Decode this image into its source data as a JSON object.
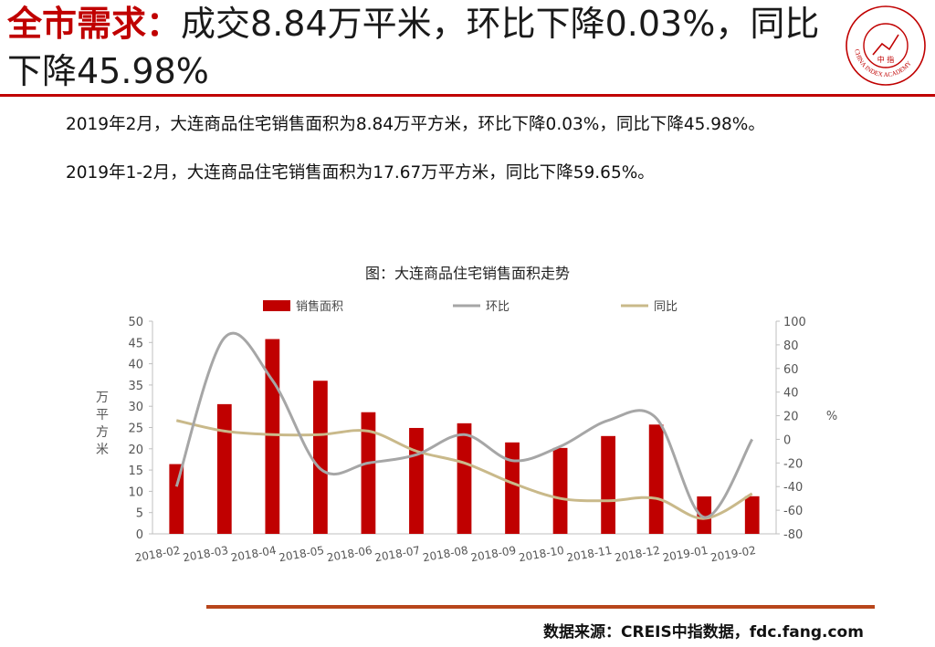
{
  "header": {
    "title_prefix": "全市需求：",
    "title_text": "成交8.84万平米，环比下降0.03%，同比下降45.98%",
    "logo_center": "中 指",
    "logo_ring_text": "CHINA INDEX ACADEMY"
  },
  "paragraphs": [
    "2019年2月，大连商品住宅销售面积为8.84万平方米，环比下降0.03%，同比下降45.98%。",
    "2019年1-2月，大连商品住宅销售面积为17.67万平方米，同比下降59.65%。"
  ],
  "footer": {
    "source": "数据来源：CREIS中指数据，fdc.fang.com"
  },
  "colors": {
    "brand_red": "#c00000",
    "bar": "#c00000",
    "mom_line": "#a6a6a6",
    "yoy_line": "#c9b98a",
    "footer_rule": "#b8461b"
  },
  "chart_data": {
    "type": "bar",
    "title": "图：大连商品住宅销售面积走势",
    "categories": [
      "2018-02",
      "2018-03",
      "2018-04",
      "2018-05",
      "2018-06",
      "2018-07",
      "2018-08",
      "2018-09",
      "2018-10",
      "2018-11",
      "2018-12",
      "2019-01",
      "2019-02"
    ],
    "series": [
      {
        "name": "销售面积",
        "type": "bar",
        "axis": "left",
        "values": [
          16.4,
          30.5,
          45.8,
          36.0,
          28.6,
          24.9,
          26.0,
          21.5,
          20.2,
          23.0,
          25.7,
          8.8,
          8.84
        ]
      },
      {
        "name": "环比",
        "type": "line",
        "axis": "right",
        "values": [
          -40,
          86,
          50,
          -25,
          -20,
          -13,
          4,
          -18,
          -6,
          16,
          18,
          -66,
          0
        ]
      },
      {
        "name": "同比",
        "type": "line",
        "axis": "right",
        "values": [
          16,
          7,
          4,
          4,
          7,
          -10,
          -20,
          -37,
          -50,
          -52,
          -50,
          -67,
          -46
        ]
      }
    ],
    "ylabel": "万平方米",
    "y2label": "%",
    "ylim": [
      0,
      50
    ],
    "y_ticks": [
      0,
      5,
      10,
      15,
      20,
      25,
      30,
      35,
      40,
      45,
      50
    ],
    "y2lim": [
      -80,
      100
    ],
    "y2_ticks": [
      -80,
      -60,
      -40,
      -20,
      0,
      20,
      40,
      60,
      80,
      100
    ],
    "legend_position": "top",
    "grid": false
  }
}
